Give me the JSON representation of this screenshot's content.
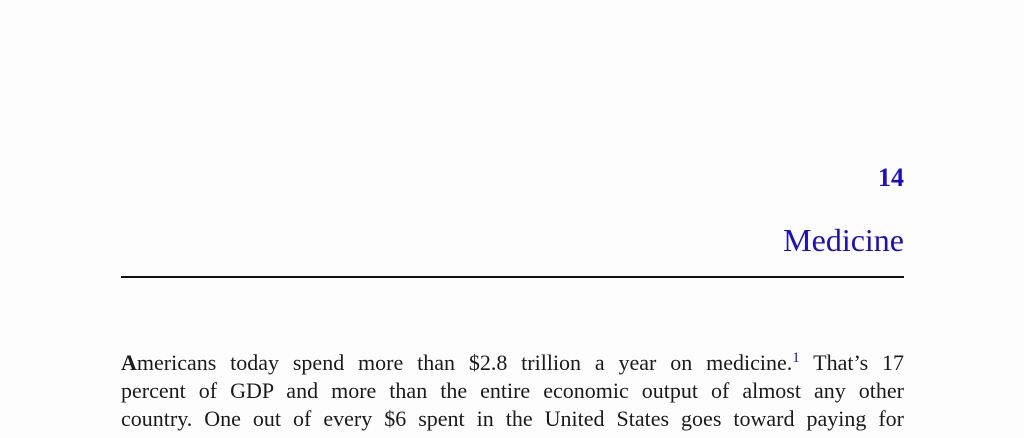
{
  "chapter": {
    "number": "14",
    "title": "Medicine"
  },
  "paragraph": {
    "lead_letter": "A",
    "line1_text": "mericans today spend more than $2.8 trillion a year on medicine.",
    "footnote_ref": "1",
    "line1_tail": " That’s 17",
    "line2": "percent of GDP and more than the entire economic output of almost any other",
    "line3": "country. One out of every $6 spent in the United States goes toward paying for"
  },
  "colors": {
    "heading": "#1a0dcc",
    "text": "#1a1a1a",
    "rule": "#111111"
  }
}
